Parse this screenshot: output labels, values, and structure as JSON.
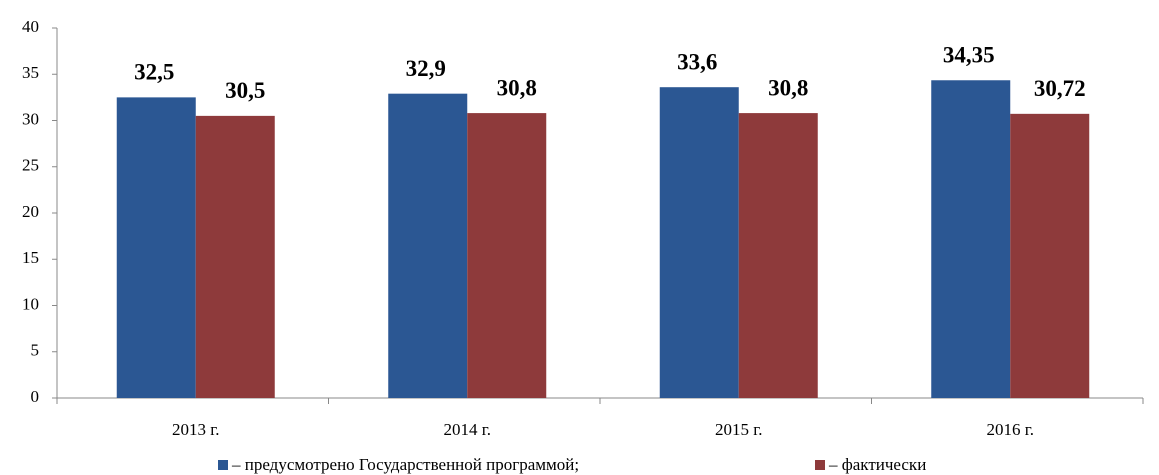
{
  "chart_data": {
    "type": "bar",
    "categories": [
      "2013 г.",
      "2014 г.",
      "2015 г.",
      "2016 г."
    ],
    "series": [
      {
        "name": "– предусмотрено Государственной программой;",
        "color": "#2b5793",
        "label_color": "#2e5a97",
        "values": [
          32.5,
          32.9,
          33.6,
          34.35
        ],
        "value_labels": [
          "32,5",
          "32,9",
          "33,6",
          "34,35"
        ]
      },
      {
        "name": "– фактически",
        "color": "#8e3a3b",
        "label_color": "#c0272d",
        "values": [
          30.5,
          30.8,
          30.8,
          30.72
        ],
        "value_labels": [
          "30,5",
          "30,8",
          "30,8",
          "30,72"
        ]
      }
    ],
    "ylim": [
      0,
      40
    ],
    "yticks": [
      0,
      5,
      10,
      15,
      20,
      25,
      30,
      35,
      40
    ],
    "grid": false
  }
}
